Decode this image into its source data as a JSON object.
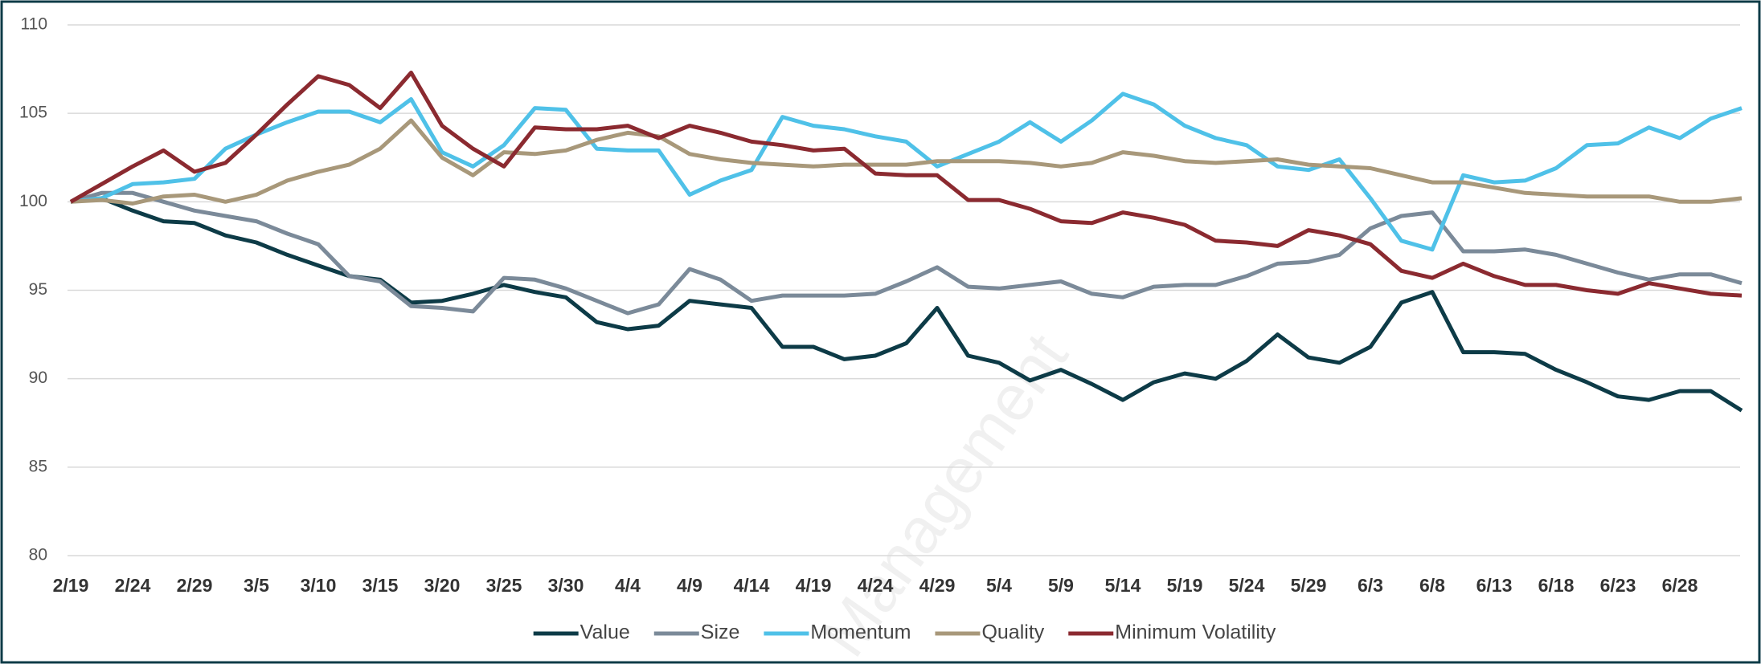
{
  "chart_data": {
    "type": "line",
    "watermark": "Management",
    "categories": [
      "2/19",
      null,
      "2/24",
      null,
      "2/29",
      null,
      "3/5",
      null,
      "3/10",
      null,
      "3/15",
      null,
      "3/20",
      null,
      "3/25",
      null,
      "3/30",
      null,
      "4/4",
      null,
      "4/9",
      null,
      "4/14",
      null,
      "4/19",
      null,
      "4/24",
      null,
      "4/29",
      null,
      "5/4",
      null,
      "5/9",
      null,
      "5/14",
      null,
      "5/19",
      null,
      "5/24",
      null,
      "5/29",
      null,
      "6/3",
      null,
      "6/8",
      null,
      "6/13",
      null,
      "6/18",
      null,
      "6/23",
      null,
      "6/28",
      null,
      null
    ],
    "series": [
      {
        "name": "Value",
        "color": "#0d3b47",
        "values": [
          100,
          100.2,
          99.5,
          98.9,
          98.8,
          98.1,
          97.7,
          97,
          96.4,
          95.8,
          95.6,
          94.3,
          94.4,
          94.8,
          95.3,
          94.9,
          94.6,
          93.2,
          92.8,
          93,
          94.4,
          94.2,
          94,
          91.8,
          91.8,
          91.1,
          91.3,
          92,
          94,
          91.3,
          90.9,
          89.9,
          90.5,
          89.7,
          88.8,
          89.8,
          90.3,
          90,
          91,
          92.5,
          91.2,
          90.9,
          91.8,
          94.3,
          94.9,
          91.5,
          91.5,
          91.4,
          90.5,
          89.8,
          89,
          88.8,
          89.3,
          89.3,
          88.2
        ]
      },
      {
        "name": "Size",
        "color": "#7b8a99",
        "values": [
          100,
          100.5,
          100.5,
          100,
          99.5,
          99.2,
          98.9,
          98.2,
          97.6,
          95.8,
          95.5,
          94.1,
          94,
          93.8,
          95.7,
          95.6,
          95.1,
          94.4,
          93.7,
          94.2,
          96.2,
          95.6,
          94.4,
          94.7,
          94.7,
          94.7,
          94.8,
          95.5,
          96.3,
          95.2,
          95.1,
          95.3,
          95.5,
          94.8,
          94.6,
          95.2,
          95.3,
          95.3,
          95.8,
          96.5,
          96.6,
          97,
          98.5,
          99.2,
          99.4,
          97.2,
          97.2,
          97.3,
          97,
          96.5,
          96,
          95.6,
          95.9,
          95.9,
          95.4
        ]
      },
      {
        "name": "Momentum",
        "color": "#4fc1e8",
        "values": [
          100,
          100.2,
          101,
          101.1,
          101.3,
          103,
          103.8,
          104.5,
          105.1,
          105.1,
          104.5,
          105.8,
          102.8,
          102,
          103.2,
          105.3,
          105.2,
          103,
          102.9,
          102.9,
          100.4,
          101.2,
          101.8,
          104.8,
          104.3,
          104.1,
          103.7,
          103.4,
          102,
          102.7,
          103.4,
          104.5,
          103.4,
          104.6,
          106.1,
          105.5,
          104.3,
          103.6,
          103.2,
          102,
          101.8,
          102.4,
          100.2,
          97.8,
          97.3,
          101.5,
          101.1,
          101.2,
          101.9,
          103.2,
          103.3,
          104.2,
          103.6,
          104.7,
          105.3
        ]
      },
      {
        "name": "Quality",
        "color": "#a8987a",
        "values": [
          100,
          100.1,
          99.9,
          100.3,
          100.4,
          100,
          100.4,
          101.2,
          101.7,
          102.1,
          103,
          104.6,
          102.5,
          101.5,
          102.8,
          102.7,
          102.9,
          103.5,
          103.9,
          103.7,
          102.7,
          102.4,
          102.2,
          102.1,
          102,
          102.1,
          102.1,
          102.1,
          102.3,
          102.3,
          102.3,
          102.2,
          102,
          102.2,
          102.8,
          102.6,
          102.3,
          102.2,
          102.3,
          102.4,
          102.1,
          102,
          101.9,
          101.5,
          101.1,
          101.1,
          100.8,
          100.5,
          100.4,
          100.3,
          100.3,
          100.3,
          100,
          100,
          100.2
        ]
      },
      {
        "name": "Minimum Volatility",
        "color": "#8b2a30",
        "values": [
          100,
          101,
          102,
          102.9,
          101.7,
          102.2,
          103.8,
          105.5,
          107.1,
          106.6,
          105.3,
          107.3,
          104.3,
          103,
          102,
          104.2,
          104.1,
          104.1,
          104.3,
          103.6,
          104.3,
          103.9,
          103.4,
          103.2,
          102.9,
          103,
          101.6,
          101.5,
          101.5,
          100.1,
          100.1,
          99.6,
          98.9,
          98.8,
          99.4,
          99.1,
          98.7,
          97.8,
          97.7,
          97.5,
          98.4,
          98.1,
          97.6,
          96.1,
          95.7,
          96.5,
          95.8,
          95.3,
          95.3,
          95,
          94.8,
          95.4,
          95.1,
          94.8,
          94.7
        ]
      }
    ],
    "ylim": [
      80,
      110
    ],
    "yticks": [
      80,
      85,
      90,
      95,
      100,
      105,
      110
    ],
    "grid": true,
    "legend": "bottom"
  }
}
